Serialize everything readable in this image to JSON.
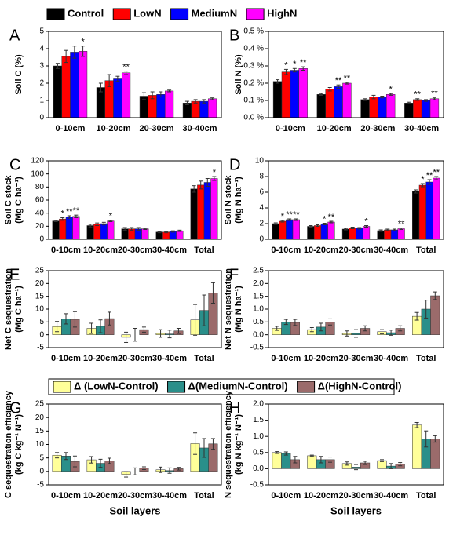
{
  "legends": [
    {
      "series": [
        {
          "name": "Control",
          "color": "#000000"
        },
        {
          "name": "LowN",
          "color": "#ff0000"
        },
        {
          "name": "MediumN",
          "color": "#0000ff"
        },
        {
          "name": "HighN",
          "color": "#ff00ff"
        }
      ]
    },
    {
      "series": [
        {
          "name": "Δ (LowN-Control)",
          "color": "#ffff99"
        },
        {
          "name": "Δ(MediumN-Control)",
          "color": "#2a8f8a"
        },
        {
          "name": "Δ(HighN-Control)",
          "color": "#9b6b6b"
        }
      ]
    }
  ],
  "chart_data": [
    {
      "type": "bar",
      "label": "A",
      "ylabel": [
        "Soil C (%)"
      ],
      "categories": [
        "0-10cm",
        "10-20cm",
        "20-30cm",
        "30-40cm"
      ],
      "ylim": [
        0,
        5
      ],
      "yticks": [
        0,
        1,
        2,
        3,
        4,
        5
      ],
      "series": [
        {
          "values": [
            3.0,
            1.75,
            1.25,
            0.85
          ],
          "errors": [
            0.15,
            0.25,
            0.2,
            0.1
          ],
          "stars": [
            null,
            null,
            null,
            null
          ]
        },
        {
          "values": [
            3.55,
            2.15,
            1.3,
            0.95
          ],
          "errors": [
            0.35,
            0.35,
            0.2,
            0.1
          ],
          "stars": [
            null,
            null,
            null,
            null
          ]
        },
        {
          "values": [
            3.8,
            2.25,
            1.35,
            0.95
          ],
          "errors": [
            0.35,
            0.15,
            0.15,
            0.1
          ],
          "stars": [
            null,
            null,
            null,
            null
          ]
        },
        {
          "values": [
            3.85,
            2.6,
            1.55,
            1.1
          ],
          "errors": [
            0.3,
            0.1,
            0.05,
            0.05
          ],
          "stars": [
            "*",
            "**",
            null,
            null
          ]
        }
      ]
    },
    {
      "type": "bar",
      "label": "B",
      "ylabel": [
        "Soil N (%)"
      ],
      "categories": [
        "0-10cm",
        "10-20cm",
        "20-30cm",
        "30-40cm"
      ],
      "ylim": [
        0,
        0.5
      ],
      "yticks": [
        {
          "value": 0,
          "label": "0.0 %"
        },
        {
          "value": 0.1,
          "label": "0.1 %"
        },
        {
          "value": 0.2,
          "label": "0.2 %"
        },
        {
          "value": 0.3,
          "label": "0.3 %"
        },
        {
          "value": 0.4,
          "label": "0.4 %"
        },
        {
          "value": 0.5,
          "label": "0.5 %"
        }
      ],
      "series": [
        {
          "values": [
            0.21,
            0.135,
            0.105,
            0.085
          ],
          "errors": [
            0.01,
            0.005,
            0.005,
            0.005
          ],
          "stars": [
            null,
            null,
            null,
            null
          ]
        },
        {
          "values": [
            0.265,
            0.165,
            0.12,
            0.105
          ],
          "errors": [
            0.015,
            0.01,
            0.01,
            0.005
          ],
          "stars": [
            "*",
            null,
            null,
            "**"
          ]
        },
        {
          "values": [
            0.275,
            0.18,
            0.12,
            0.1
          ],
          "errors": [
            0.01,
            0.01,
            0.005,
            0.005
          ],
          "stars": [
            "*",
            "**",
            null,
            null
          ]
        },
        {
          "values": [
            0.285,
            0.2,
            0.135,
            0.11
          ],
          "errors": [
            0.01,
            0.005,
            0.005,
            0.005
          ],
          "stars": [
            "**",
            "**",
            "*",
            "**"
          ]
        }
      ]
    },
    {
      "type": "bar",
      "label": "C",
      "ylabel": [
        "Soil C stock",
        "(Mg C ha⁻¹)"
      ],
      "categories": [
        "0-10cm",
        "10-20cm",
        "20-30cm",
        "30-40cm",
        "Total"
      ],
      "ylim": [
        0,
        120
      ],
      "yticks": [
        0,
        20,
        40,
        60,
        80,
        100,
        120
      ],
      "series": [
        {
          "values": [
            28,
            21,
            16,
            11,
            77
          ],
          "errors": [
            1,
            2,
            2,
            1,
            5
          ],
          "stars": [
            null,
            null,
            null,
            null,
            null
          ]
        },
        {
          "values": [
            31,
            23,
            16,
            11,
            83
          ],
          "errors": [
            2,
            2,
            2,
            1,
            6
          ],
          "stars": [
            "*",
            null,
            null,
            null,
            null
          ]
        },
        {
          "values": [
            34,
            24,
            16,
            12,
            87
          ],
          "errors": [
            2,
            2,
            2,
            1,
            6
          ],
          "stars": [
            "**",
            null,
            null,
            null,
            null
          ]
        },
        {
          "values": [
            35,
            28,
            16,
            13,
            93
          ],
          "errors": [
            2,
            1,
            1,
            1,
            3
          ],
          "stars": [
            "**",
            "*",
            null,
            null,
            "*"
          ]
        }
      ]
    },
    {
      "type": "bar",
      "label": "D",
      "ylabel": [
        "Soil N stock",
        "(Mg N ha⁻¹)"
      ],
      "categories": [
        "0-10cm",
        "10-20cm",
        "20-30cm",
        "30-40cm",
        "Total"
      ],
      "ylim": [
        0,
        10
      ],
      "yticks": [
        0,
        2,
        4,
        6,
        8,
        10
      ],
      "series": [
        {
          "values": [
            2.0,
            1.65,
            1.3,
            1.1,
            6.1
          ],
          "errors": [
            0.1,
            0.1,
            0.1,
            0.1,
            0.2
          ],
          "stars": [
            null,
            null,
            null,
            null,
            null
          ]
        },
        {
          "values": [
            2.3,
            1.75,
            1.45,
            1.2,
            6.9
          ],
          "errors": [
            0.1,
            0.1,
            0.1,
            0.1,
            0.2
          ],
          "stars": [
            "*",
            null,
            null,
            null,
            "*"
          ]
        },
        {
          "values": [
            2.5,
            1.95,
            1.4,
            1.2,
            7.3
          ],
          "errors": [
            0.1,
            0.1,
            0.1,
            0.1,
            0.3
          ],
          "stars": [
            "**",
            "*",
            null,
            null,
            "**"
          ]
        },
        {
          "values": [
            2.5,
            2.2,
            1.65,
            1.35,
            7.8
          ],
          "errors": [
            0.1,
            0.1,
            0.1,
            0.1,
            0.2
          ],
          "stars": [
            "**",
            "**",
            "*",
            "**",
            "**"
          ]
        }
      ]
    },
    {
      "type": "bar",
      "label": "E",
      "ylabel": [
        "Net C sequestration",
        "(Mg C ha⁻¹)"
      ],
      "categories": [
        "0-10cm",
        "10-20cm",
        "20-30cm",
        "30-40cm",
        "Total"
      ],
      "ylim": [
        -5,
        25
      ],
      "yticks": [
        -5,
        0,
        5,
        10,
        15,
        20,
        25
      ],
      "series": [
        {
          "values": [
            3.2,
            2.5,
            -1.0,
            0.5,
            5.8
          ],
          "errors": [
            2,
            2,
            2,
            1.5,
            6
          ]
        },
        {
          "values": [
            6.2,
            3.3,
            0.0,
            0.3,
            9.5
          ],
          "errors": [
            2,
            2.5,
            2.5,
            1.5,
            6
          ]
        },
        {
          "values": [
            6.0,
            6.3,
            2.0,
            1.5,
            16.3
          ],
          "errors": [
            3,
            2.5,
            1,
            1,
            4
          ]
        }
      ]
    },
    {
      "type": "bar",
      "label": "F",
      "ylabel": [
        "Net N sequestration",
        "(Mg N ha⁻¹)"
      ],
      "categories": [
        "0-10cm",
        "10-20cm",
        "20-30cm",
        "30-40cm",
        "Total"
      ],
      "ylim": [
        -0.5,
        2.5
      ],
      "yticks": [
        -0.5,
        {
          "value": 0,
          "label": "0.0"
        },
        0.5,
        {
          "value": 1,
          "label": "1.0"
        },
        1.5,
        {
          "value": 2,
          "label": "2.0"
        },
        2.5
      ],
      "series": [
        {
          "values": [
            0.25,
            0.2,
            0.05,
            0.12,
            0.72
          ],
          "errors": [
            0.08,
            0.08,
            0.1,
            0.08,
            0.15
          ]
        },
        {
          "values": [
            0.5,
            0.3,
            0.05,
            0.08,
            1.0
          ],
          "errors": [
            0.1,
            0.15,
            0.15,
            0.1,
            0.35
          ]
        },
        {
          "values": [
            0.48,
            0.5,
            0.25,
            0.25,
            1.52
          ],
          "errors": [
            0.12,
            0.12,
            0.1,
            0.1,
            0.15
          ]
        }
      ]
    },
    {
      "type": "bar",
      "label": "G",
      "ylabel": [
        "C sequestration efficiency",
        "(kg C kg⁻¹ N⁻¹)"
      ],
      "xlabel": "Soil layers",
      "categories": [
        "0-10cm",
        "10-20cm",
        "20-30cm",
        "30-40cm",
        "Total"
      ],
      "ylim": [
        -5,
        25
      ],
      "yticks": [
        -5,
        0,
        5,
        10,
        15,
        20,
        25
      ],
      "series": [
        {
          "values": [
            6.0,
            4.3,
            -1.1,
            0.6,
            10.3
          ],
          "errors": [
            1,
            1.2,
            1,
            1,
            4
          ]
        },
        {
          "values": [
            5.7,
            3.0,
            0.0,
            0.3,
            8.7
          ],
          "errors": [
            1.3,
            1.5,
            1.3,
            1,
            3.5
          ]
        },
        {
          "values": [
            3.7,
            3.9,
            1.2,
            1.0,
            10.2
          ],
          "errors": [
            2,
            1,
            0.5,
            0.5,
            2
          ]
        }
      ]
    },
    {
      "type": "bar",
      "label": "H",
      "ylabel": [
        "N sequestration efficiency",
        "(kg N kg⁻¹ N⁻¹)"
      ],
      "xlabel": "Soil layers",
      "categories": [
        "0-10cm",
        "10-20cm",
        "20-30cm",
        "30-40cm",
        "Total"
      ],
      "ylim": [
        -0.5,
        2.0
      ],
      "yticks": [
        -0.5,
        {
          "value": 0,
          "label": "0.0"
        },
        0.5,
        {
          "value": 1,
          "label": "1.0"
        },
        1.5,
        {
          "value": 2,
          "label": "2.0"
        }
      ],
      "series": [
        {
          "values": [
            0.5,
            0.4,
            0.16,
            0.25,
            1.35
          ],
          "errors": [
            0.03,
            0.02,
            0.05,
            0.03,
            0.08
          ]
        },
        {
          "values": [
            0.47,
            0.28,
            0.05,
            0.08,
            0.92
          ],
          "errors": [
            0.05,
            0.1,
            0.08,
            0.08,
            0.25
          ]
        },
        {
          "values": [
            0.28,
            0.28,
            0.18,
            0.14,
            0.92
          ],
          "errors": [
            0.1,
            0.08,
            0.05,
            0.05,
            0.1
          ]
        }
      ]
    }
  ]
}
